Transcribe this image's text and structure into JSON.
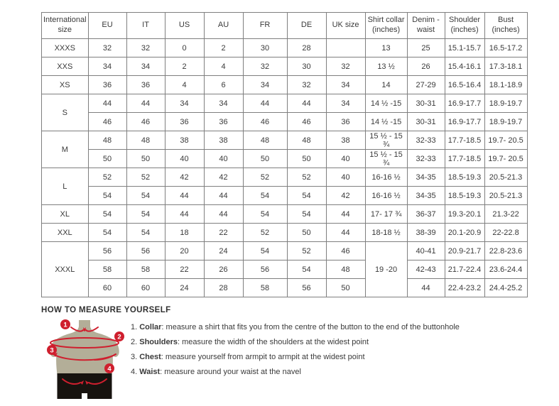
{
  "table": {
    "columns": [
      "International size",
      "EU",
      "IT",
      "US",
      "AU",
      "FR",
      "DE",
      "UK size",
      "Shirt collar (inches)",
      "Denim - waist",
      "Shoulder (inches)",
      "Bust (inches)"
    ],
    "rows": [
      [
        "XXXS",
        "32",
        "32",
        "0",
        "2",
        "30",
        "28",
        "",
        "13",
        "25",
        "15.1-15.7",
        "16.5-17.2"
      ],
      [
        "XXS",
        "34",
        "34",
        "2",
        "4",
        "32",
        "30",
        "32",
        "13 ½",
        "26",
        "15.4-16.1",
        "17.3-18.1"
      ],
      [
        "XS",
        "36",
        "36",
        "4",
        "6",
        "34",
        "32",
        "34",
        "14",
        "27-29",
        "16.5-16.4",
        "18.1-18.9"
      ],
      [
        {
          "t": "S",
          "rs": 2
        },
        "44",
        "44",
        "34",
        "34",
        "44",
        "44",
        "34",
        "14 ½ -15",
        "30-31",
        "16.9-17.7",
        "18.9-19.7"
      ],
      [
        null,
        "46",
        "46",
        "36",
        "36",
        "46",
        "46",
        "36",
        "14 ½ -15",
        "30-31",
        "16.9-17.7",
        "18.9-19.7"
      ],
      [
        {
          "t": "M",
          "rs": 2
        },
        "48",
        "48",
        "38",
        "38",
        "48",
        "48",
        "38",
        "15 ½ - 15 ¾",
        "32-33",
        "17.7-18.5",
        "19.7- 20.5"
      ],
      [
        null,
        "50",
        "50",
        "40",
        "40",
        "50",
        "50",
        "40",
        "15 ½ - 15 ¾",
        "32-33",
        "17.7-18.5",
        "19.7- 20.5"
      ],
      [
        {
          "t": "L",
          "rs": 2
        },
        "52",
        "52",
        "42",
        "42",
        "52",
        "52",
        "40",
        "16-16 ½",
        "34-35",
        "18.5-19.3",
        "20.5-21.3"
      ],
      [
        null,
        "54",
        "54",
        "44",
        "44",
        "54",
        "54",
        "42",
        "16-16 ½",
        "34-35",
        "18.5-19.3",
        "20.5-21.3"
      ],
      [
        "XL",
        "54",
        "54",
        "44",
        "44",
        "54",
        "54",
        "44",
        "17- 17 ¾",
        "36-37",
        "19.3-20.1",
        "21.3-22"
      ],
      [
        "XXL",
        "54",
        "54",
        "18",
        "22",
        "52",
        "50",
        "44",
        "18-18 ½",
        "38-39",
        "20.1-20.9",
        "22-22.8"
      ],
      [
        {
          "t": "XXXL",
          "rs": 3
        },
        "56",
        "56",
        "20",
        "24",
        "54",
        "52",
        "46",
        {
          "t": "19 -20",
          "rs": 3
        },
        "40-41",
        "20.9-21.7",
        "22.8-23.6"
      ],
      [
        null,
        "58",
        "58",
        "22",
        "26",
        "56",
        "54",
        "48",
        null,
        "42-43",
        "21.7-22.4",
        "23.6-24.4"
      ],
      [
        null,
        "60",
        "60",
        "24",
        "28",
        "58",
        "56",
        "50",
        null,
        "44",
        "22.4-23.2",
        "24.4-25.2"
      ]
    ]
  },
  "measure": {
    "title": "HOW TO MEASURE YOURSELF",
    "markers": [
      "1",
      "2",
      "3",
      "4"
    ],
    "items": [
      {
        "num": "1. ",
        "label": "Collar",
        "text": ": measure a shirt that fits you from the centre of the button to the end of the buttonhole"
      },
      {
        "num": "2. ",
        "label": "Shoulders",
        "text": ": measure the width of the shoulders at the widest point"
      },
      {
        "num": "3. ",
        "label": "Chest",
        "text": ": measure yourself from armpit to armpit at the widest point"
      },
      {
        "num": "4. ",
        "label": "Waist",
        "text": ": measure around your waist at the navel"
      }
    ]
  },
  "colors": {
    "accent_red": "#cf1f2e",
    "torso": "#b3ae98",
    "shorts": "#17130f",
    "border": "#7f7f7f",
    "text": "#3a3a3a"
  }
}
